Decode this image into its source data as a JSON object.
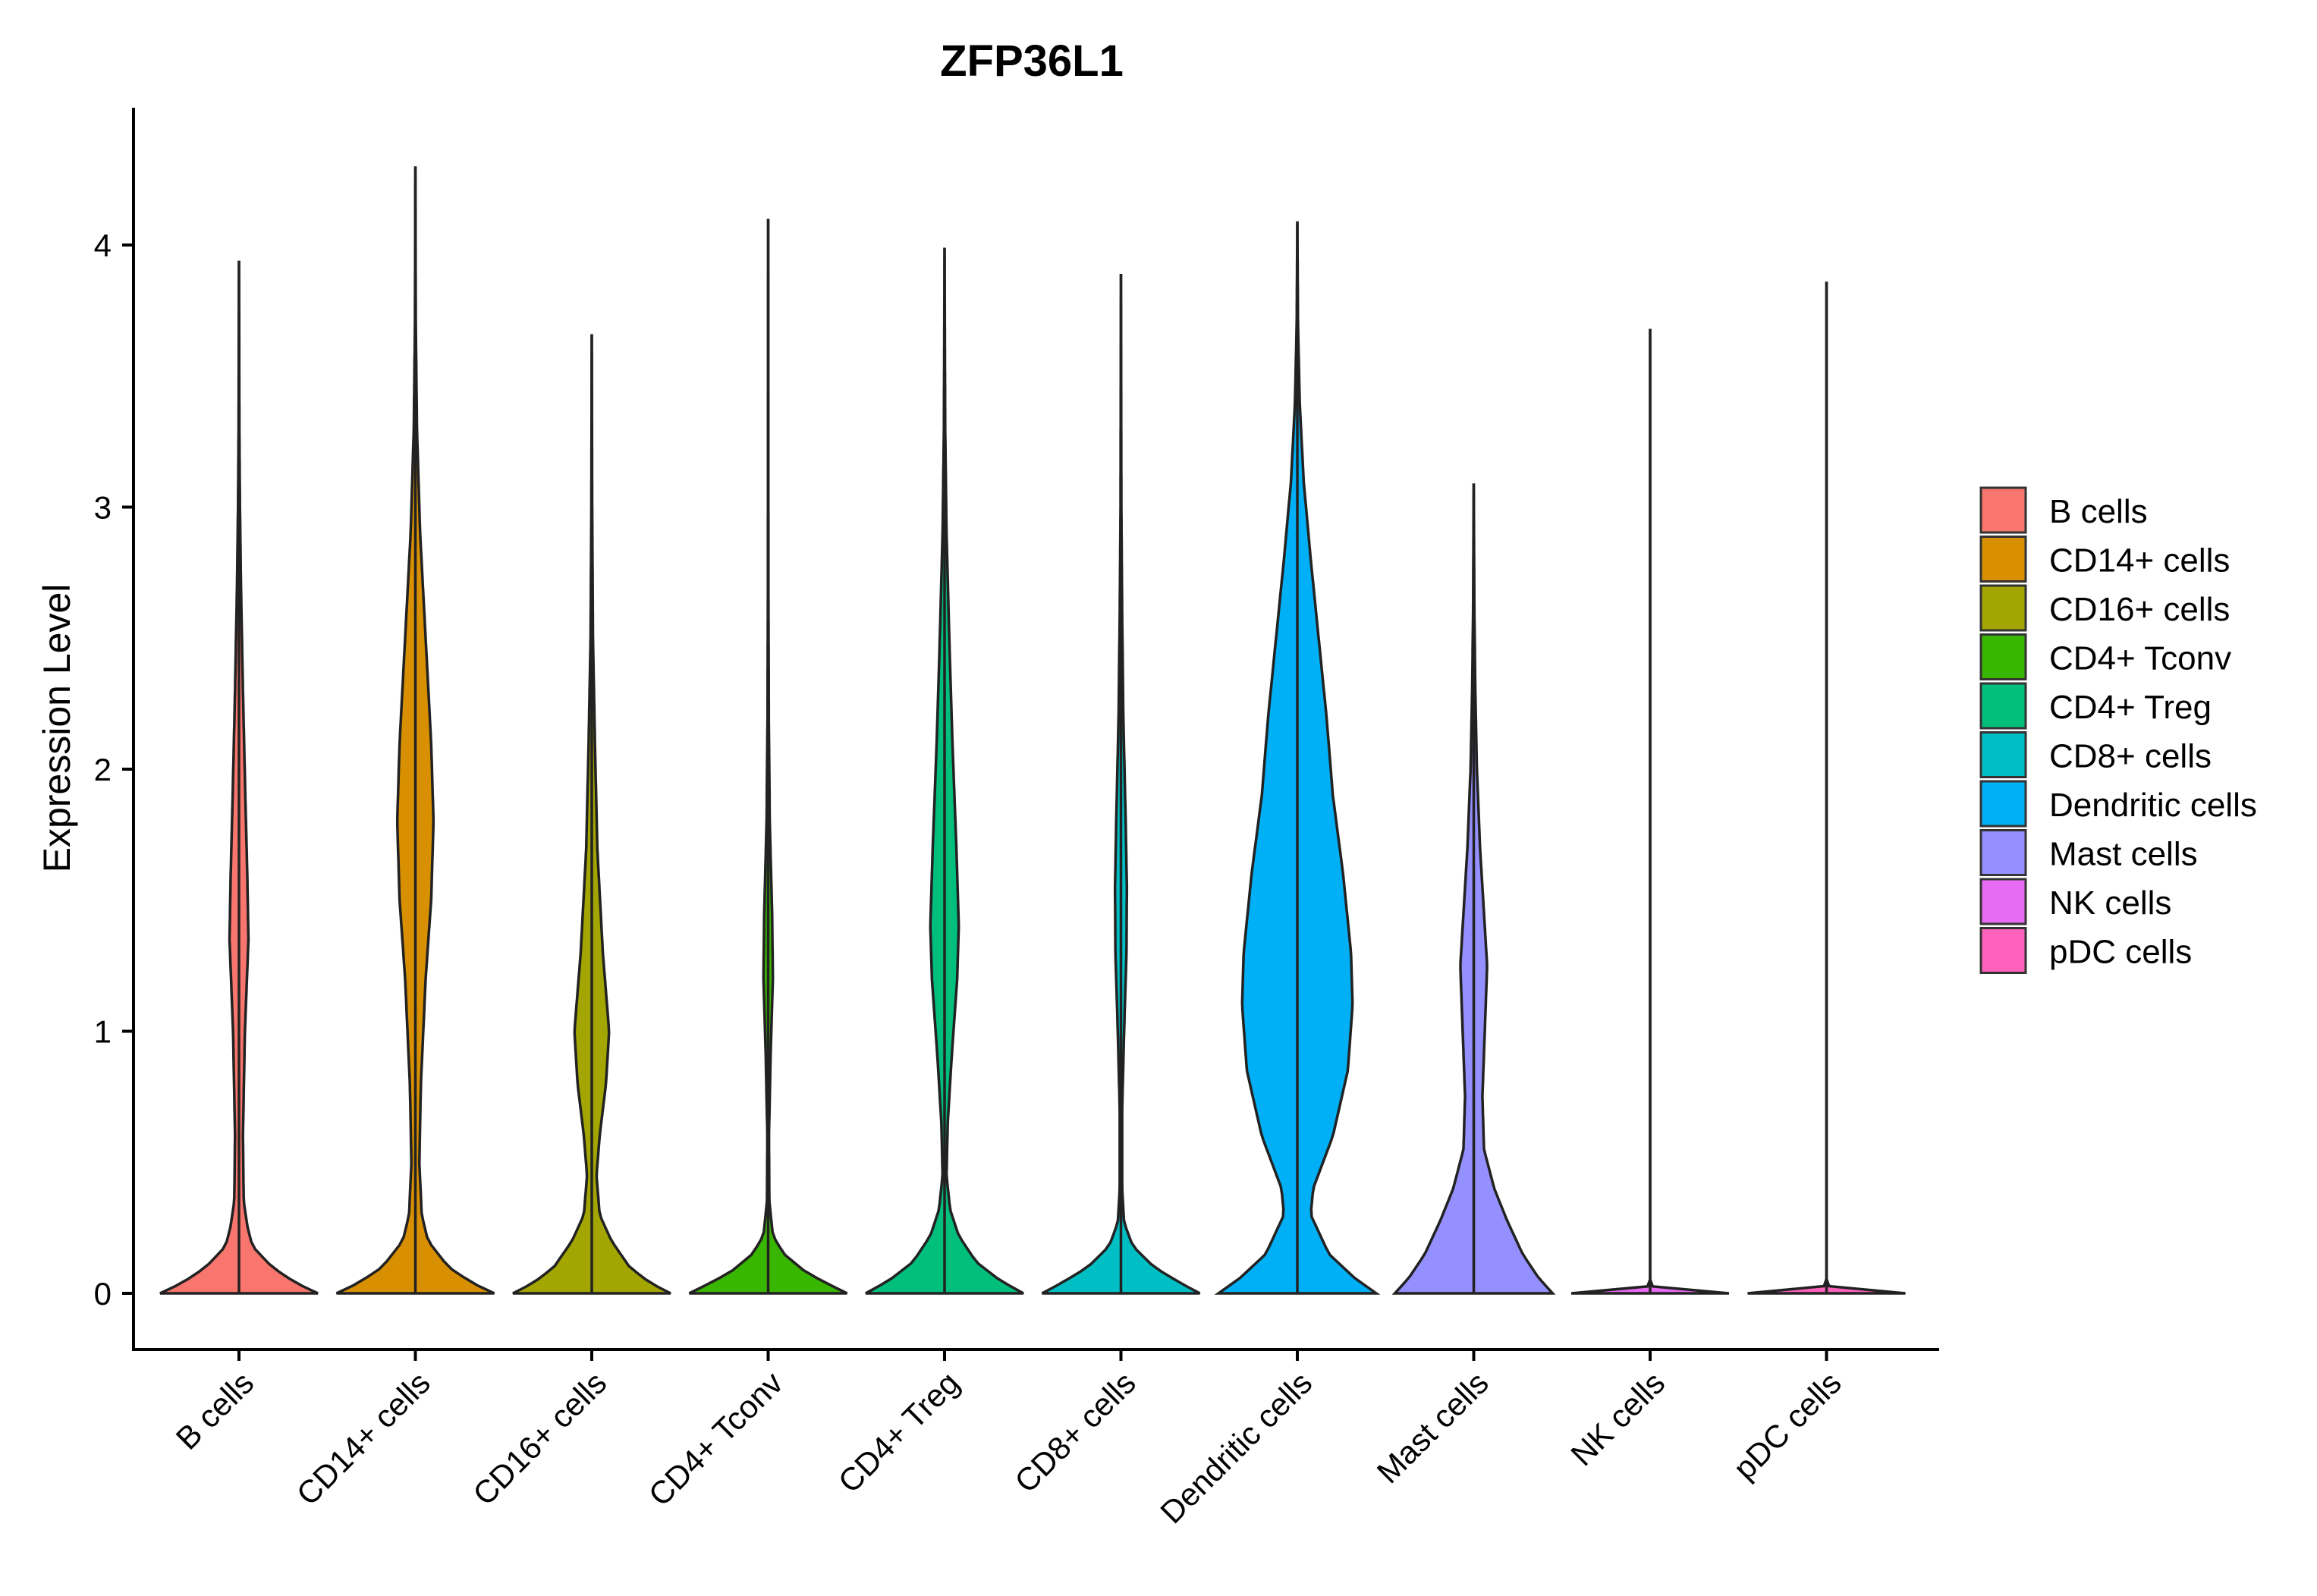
{
  "chart_data": {
    "type": "violin",
    "title": "ZFP36L1",
    "xlabel": "",
    "ylabel": "Expression Level",
    "ylim": [
      -0.22,
      4.5
    ],
    "yticks": [
      0,
      1,
      2,
      3,
      4
    ],
    "grid": false,
    "legend_position": "right",
    "categories": [
      "B cells",
      "CD14+ cells",
      "CD16+ cells",
      "CD4+ Tconv",
      "CD4+ Treg",
      "CD8+ cells",
      "Dendritic cells",
      "Mast cells",
      "NK cells",
      "pDC cells"
    ],
    "series": [
      {
        "name": "B cells",
        "color": "#F8766D",
        "max": 3.94,
        "profile": [
          [
            0,
            1.0
          ],
          [
            0.04,
            0.72
          ],
          [
            0.1,
            0.42
          ],
          [
            0.18,
            0.17
          ],
          [
            0.25,
            0.11
          ],
          [
            0.35,
            0.06
          ],
          [
            0.6,
            0.05
          ],
          [
            1.0,
            0.075
          ],
          [
            1.35,
            0.12
          ],
          [
            1.6,
            0.105
          ],
          [
            1.9,
            0.08
          ],
          [
            2.3,
            0.05
          ],
          [
            2.7,
            0.025
          ],
          [
            3.0,
            0.012
          ],
          [
            3.3,
            0.005
          ],
          [
            3.94,
            0.0
          ]
        ]
      },
      {
        "name": "CD14+ cells",
        "color": "#D89000",
        "max": 4.3,
        "profile": [
          [
            0,
            1.0
          ],
          [
            0.04,
            0.72
          ],
          [
            0.1,
            0.42
          ],
          [
            0.2,
            0.16
          ],
          [
            0.3,
            0.08
          ],
          [
            0.5,
            0.05
          ],
          [
            0.8,
            0.07
          ],
          [
            1.2,
            0.13
          ],
          [
            1.5,
            0.2
          ],
          [
            1.8,
            0.23
          ],
          [
            2.1,
            0.2
          ],
          [
            2.5,
            0.13
          ],
          [
            2.9,
            0.06
          ],
          [
            3.3,
            0.02
          ],
          [
            3.7,
            0.005
          ],
          [
            4.3,
            0.0
          ]
        ]
      },
      {
        "name": "CD16+ cells",
        "color": "#A3A500",
        "max": 3.66,
        "profile": [
          [
            0,
            1.0
          ],
          [
            0.04,
            0.74
          ],
          [
            0.1,
            0.48
          ],
          [
            0.2,
            0.25
          ],
          [
            0.3,
            0.1
          ],
          [
            0.45,
            0.06
          ],
          [
            0.6,
            0.1
          ],
          [
            0.8,
            0.18
          ],
          [
            1.0,
            0.22
          ],
          [
            1.3,
            0.14
          ],
          [
            1.7,
            0.07
          ],
          [
            2.1,
            0.04
          ],
          [
            2.5,
            0.015
          ],
          [
            3.0,
            0.005
          ],
          [
            3.66,
            0.0
          ]
        ]
      },
      {
        "name": "CD4+ Tconv",
        "color": "#39B600",
        "max": 4.1,
        "profile": [
          [
            0,
            1.0
          ],
          [
            0.03,
            0.8
          ],
          [
            0.08,
            0.48
          ],
          [
            0.15,
            0.2
          ],
          [
            0.22,
            0.06
          ],
          [
            0.35,
            0.015
          ],
          [
            0.6,
            0.01
          ],
          [
            0.9,
            0.03
          ],
          [
            1.2,
            0.06
          ],
          [
            1.45,
            0.05
          ],
          [
            1.8,
            0.02
          ],
          [
            2.2,
            0.008
          ],
          [
            2.7,
            0.003
          ],
          [
            4.1,
            0.0
          ]
        ]
      },
      {
        "name": "CD4+ Treg",
        "color": "#00BF7D",
        "max": 3.99,
        "profile": [
          [
            0,
            1.0
          ],
          [
            0.05,
            0.7
          ],
          [
            0.12,
            0.4
          ],
          [
            0.22,
            0.18
          ],
          [
            0.32,
            0.07
          ],
          [
            0.45,
            0.025
          ],
          [
            0.65,
            0.04
          ],
          [
            0.9,
            0.09
          ],
          [
            1.2,
            0.16
          ],
          [
            1.4,
            0.18
          ],
          [
            1.7,
            0.15
          ],
          [
            2.1,
            0.1
          ],
          [
            2.5,
            0.06
          ],
          [
            2.9,
            0.025
          ],
          [
            3.3,
            0.008
          ],
          [
            3.99,
            0.0
          ]
        ]
      },
      {
        "name": "CD8+ cells",
        "color": "#00BFC4",
        "max": 3.89,
        "profile": [
          [
            0,
            1.0
          ],
          [
            0.04,
            0.75
          ],
          [
            0.1,
            0.42
          ],
          [
            0.18,
            0.15
          ],
          [
            0.27,
            0.04
          ],
          [
            0.4,
            0.015
          ],
          [
            0.7,
            0.015
          ],
          [
            1.0,
            0.04
          ],
          [
            1.3,
            0.07
          ],
          [
            1.55,
            0.075
          ],
          [
            1.8,
            0.06
          ],
          [
            2.2,
            0.03
          ],
          [
            2.6,
            0.015
          ],
          [
            3.0,
            0.005
          ],
          [
            3.89,
            0.0
          ]
        ]
      },
      {
        "name": "Dendritic cells",
        "color": "#00B0F6",
        "max": 4.09,
        "profile": [
          [
            0,
            1.0
          ],
          [
            0.06,
            0.72
          ],
          [
            0.15,
            0.4
          ],
          [
            0.3,
            0.17
          ],
          [
            0.4,
            0.2
          ],
          [
            0.6,
            0.45
          ],
          [
            0.85,
            0.64
          ],
          [
            1.1,
            0.7
          ],
          [
            1.3,
            0.68
          ],
          [
            1.6,
            0.58
          ],
          [
            1.9,
            0.45
          ],
          [
            2.2,
            0.37
          ],
          [
            2.5,
            0.27
          ],
          [
            2.8,
            0.17
          ],
          [
            3.1,
            0.08
          ],
          [
            3.4,
            0.03
          ],
          [
            3.7,
            0.008
          ],
          [
            4.09,
            0.0
          ]
        ]
      },
      {
        "name": "Mast cells",
        "color": "#9590FF",
        "max": 3.09,
        "profile": [
          [
            0,
            1.0
          ],
          [
            0.06,
            0.82
          ],
          [
            0.15,
            0.62
          ],
          [
            0.28,
            0.42
          ],
          [
            0.4,
            0.26
          ],
          [
            0.55,
            0.13
          ],
          [
            0.75,
            0.11
          ],
          [
            1.0,
            0.14
          ],
          [
            1.25,
            0.17
          ],
          [
            1.45,
            0.13
          ],
          [
            1.7,
            0.08
          ],
          [
            2.0,
            0.04
          ],
          [
            2.3,
            0.02
          ],
          [
            2.6,
            0.008
          ],
          [
            3.09,
            0.0
          ]
        ]
      },
      {
        "name": "NK cells",
        "color": "#E76BF3",
        "max": 3.68,
        "profile": [
          [
            0,
            1.0
          ],
          [
            0.005,
            0.45
          ],
          [
            0.015,
            0.05
          ],
          [
            0.05,
            0.0
          ],
          [
            3.68,
            0.0
          ]
        ]
      },
      {
        "name": "pDC cells",
        "color": "#FF62BC",
        "max": 3.86,
        "profile": [
          [
            0,
            1.0
          ],
          [
            0.005,
            0.45
          ],
          [
            0.015,
            0.05
          ],
          [
            0.05,
            0.0
          ],
          [
            3.86,
            0.0
          ]
        ]
      }
    ]
  }
}
